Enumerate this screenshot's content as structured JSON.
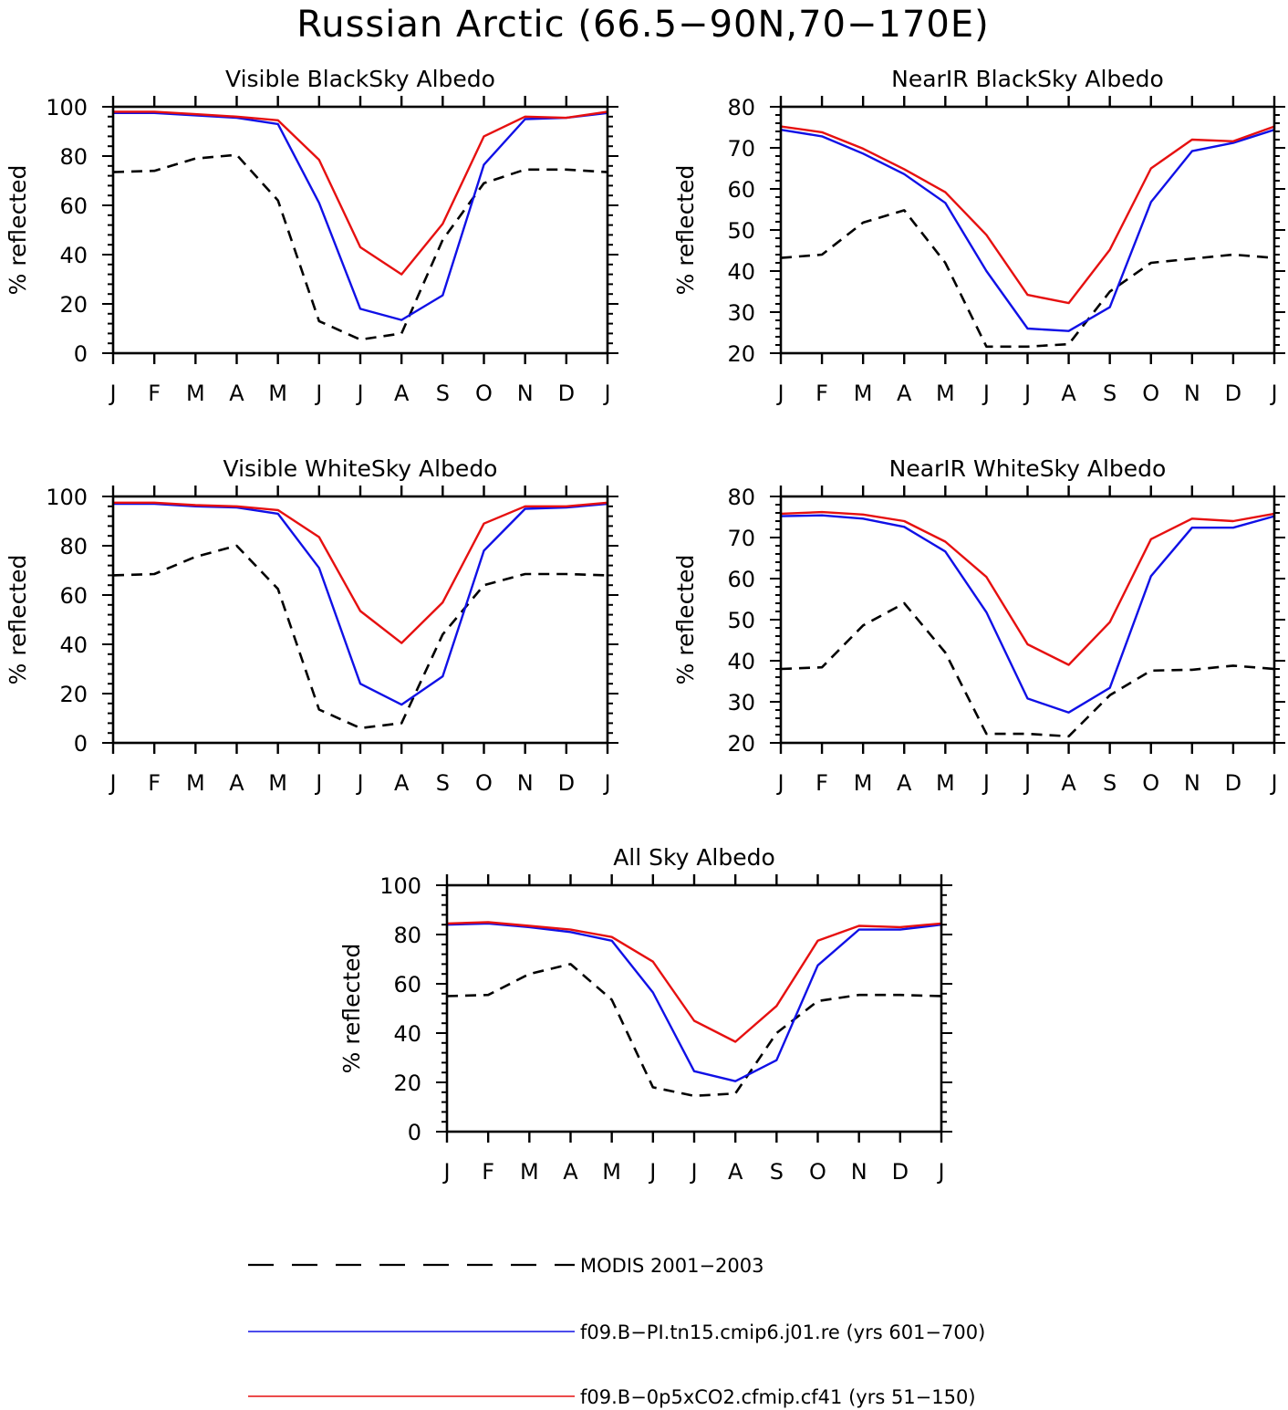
{
  "figure": {
    "title": "Russian Arctic (66.5−90N,70−170E)"
  },
  "colors": {
    "modis": "#000000",
    "pi": "#1010e6",
    "cf": "#e61010"
  },
  "legend": [
    {
      "key": "modis",
      "label": "MODIS 2001−2003",
      "style": "dashed"
    },
    {
      "key": "pi",
      "label": "f09.B−PI.tn15.cmip6.j01.re (yrs 601−700)",
      "style": "solid"
    },
    {
      "key": "cf",
      "label": "f09.B−0p5xCO2.cfmip.cf41 (yrs 51−150)",
      "style": "solid"
    }
  ],
  "chart_data": [
    {
      "type": "line",
      "title": "Visible BlackSky Albedo",
      "ylabel": "% reflected",
      "xlabel": "",
      "categories": [
        "J",
        "F",
        "M",
        "A",
        "M",
        "J",
        "J",
        "A",
        "S",
        "O",
        "N",
        "D",
        "J"
      ],
      "ylim": [
        0,
        100
      ],
      "yticks": [
        0,
        20,
        40,
        60,
        80,
        100
      ],
      "series": [
        {
          "key": "modis",
          "values": [
            73.5,
            74,
            79,
            80.5,
            62,
            13,
            5.5,
            8,
            46,
            69,
            74.5,
            74.5,
            73.5
          ]
        },
        {
          "key": "pi",
          "values": [
            97.5,
            97.5,
            96.5,
            95.5,
            93,
            61,
            18,
            13.5,
            23.5,
            76.5,
            95,
            95.5,
            97.5
          ]
        },
        {
          "key": "cf",
          "values": [
            98,
            98,
            97,
            96,
            94.5,
            78.5,
            43,
            32,
            52.5,
            88,
            96,
            95.5,
            98
          ]
        }
      ]
    },
    {
      "type": "line",
      "title": "NearIR BlackSky Albedo",
      "ylabel": "% reflected",
      "xlabel": "",
      "categories": [
        "J",
        "F",
        "M",
        "A",
        "M",
        "J",
        "J",
        "A",
        "S",
        "O",
        "N",
        "D",
        "J"
      ],
      "ylim": [
        20,
        80
      ],
      "yticks": [
        20,
        30,
        40,
        50,
        60,
        70,
        80
      ],
      "series": [
        {
          "key": "modis",
          "values": [
            43.2,
            44,
            51.8,
            54.8,
            42,
            21.6,
            21.6,
            22.2,
            35,
            42,
            43,
            44,
            43.2
          ]
        },
        {
          "key": "pi",
          "values": [
            74.4,
            72.8,
            68.6,
            63.6,
            56.6,
            40,
            26,
            25.4,
            31.2,
            56.8,
            69.2,
            71.2,
            74.4
          ]
        },
        {
          "key": "cf",
          "values": [
            75.2,
            73.8,
            69.8,
            64.8,
            59.2,
            48.8,
            34.2,
            32.2,
            45.2,
            65,
            72,
            71.6,
            75.2
          ]
        }
      ]
    },
    {
      "type": "line",
      "title": "Visible WhiteSky Albedo",
      "ylabel": "% reflected",
      "xlabel": "",
      "categories": [
        "J",
        "F",
        "M",
        "A",
        "M",
        "J",
        "J",
        "A",
        "S",
        "O",
        "N",
        "D",
        "J"
      ],
      "ylim": [
        0,
        100
      ],
      "yticks": [
        0,
        20,
        40,
        60,
        80,
        100
      ],
      "series": [
        {
          "key": "modis",
          "values": [
            68,
            68.5,
            75.5,
            80,
            62.5,
            13.5,
            6,
            8,
            44,
            64,
            68.5,
            68.5,
            68
          ]
        },
        {
          "key": "pi",
          "values": [
            97,
            97,
            96,
            95.5,
            93,
            71,
            24,
            15.5,
            27,
            78,
            95,
            95.5,
            97
          ]
        },
        {
          "key": "cf",
          "values": [
            97.5,
            97.5,
            96.5,
            96,
            94.5,
            83.5,
            53.5,
            40.5,
            57,
            89,
            96,
            96,
            97.5
          ]
        }
      ]
    },
    {
      "type": "line",
      "title": "NearIR WhiteSky Albedo",
      "ylabel": "% reflected",
      "xlabel": "",
      "categories": [
        "J",
        "F",
        "M",
        "A",
        "M",
        "J",
        "J",
        "A",
        "S",
        "O",
        "N",
        "D",
        "J"
      ],
      "ylim": [
        20,
        80
      ],
      "yticks": [
        20,
        30,
        40,
        50,
        60,
        70,
        80
      ],
      "series": [
        {
          "key": "modis",
          "values": [
            38,
            38.4,
            48.6,
            54,
            42,
            22.2,
            22.2,
            21.6,
            31.6,
            37.6,
            37.8,
            38.8,
            38
          ]
        },
        {
          "key": "pi",
          "values": [
            75.2,
            75.4,
            74.6,
            72.6,
            66.6,
            51.8,
            30.8,
            27.4,
            33.4,
            60.6,
            72.4,
            72.4,
            75.2
          ]
        },
        {
          "key": "cf",
          "values": [
            75.8,
            76.2,
            75.6,
            74,
            69,
            60.4,
            44,
            39,
            49.4,
            69.6,
            74.6,
            74,
            75.8
          ]
        }
      ]
    },
    {
      "type": "line",
      "title": "All Sky Albedo",
      "ylabel": "% reflected",
      "xlabel": "",
      "categories": [
        "J",
        "F",
        "M",
        "A",
        "M",
        "J",
        "J",
        "A",
        "S",
        "O",
        "N",
        "D",
        "J"
      ],
      "ylim": [
        0,
        100
      ],
      "yticks": [
        0,
        20,
        40,
        60,
        80,
        100
      ],
      "series": [
        {
          "key": "modis",
          "values": [
            55,
            55.5,
            64,
            68,
            53.5,
            18,
            14.5,
            15.5,
            40,
            53,
            55.5,
            55.5,
            55
          ]
        },
        {
          "key": "pi",
          "values": [
            84,
            84.5,
            83,
            81,
            77.5,
            56.5,
            24.5,
            20.5,
            29,
            67.5,
            82,
            82,
            84
          ]
        },
        {
          "key": "cf",
          "values": [
            84.5,
            85,
            83.5,
            82,
            79,
            69,
            45,
            36.5,
            51,
            77.5,
            83.5,
            83,
            84.5
          ]
        }
      ]
    }
  ]
}
